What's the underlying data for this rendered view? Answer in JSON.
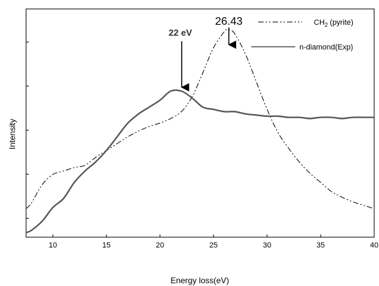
{
  "chart_data": {
    "type": "line",
    "xlabel": "Energy  loss(eV)",
    "ylabel": "Intensity",
    "xlim": [
      7.5,
      40
    ],
    "ylim": [
      0,
      1
    ],
    "x_ticks": [
      10,
      15,
      20,
      25,
      30,
      35,
      40
    ],
    "x_tick_labels": [
      "10",
      "15",
      "20",
      "25",
      "30",
      "35",
      "40"
    ],
    "y_ticks": [
      0.083,
      0.276,
      0.469,
      0.662,
      0.855
    ],
    "grid": false,
    "legend_position": "top-right",
    "series": [
      {
        "name": "CH2 (pyrite)",
        "legend_main": "CH",
        "legend_sub": "2",
        "legend_rest": " (pyrite)",
        "style": "dash-dot-dot",
        "color": "#000000",
        "x": [
          7.5,
          8,
          9,
          10,
          11,
          12,
          13,
          14,
          15,
          16,
          17,
          18,
          19,
          20,
          21,
          22,
          23,
          24,
          25,
          26,
          26.43,
          27,
          28,
          29,
          30,
          31,
          32,
          33,
          34,
          35,
          36,
          37,
          38,
          39,
          40
        ],
        "y": [
          0.125,
          0.15,
          0.23,
          0.275,
          0.29,
          0.305,
          0.315,
          0.35,
          0.38,
          0.41,
          0.44,
          0.465,
          0.485,
          0.5,
          0.52,
          0.55,
          0.615,
          0.72,
          0.83,
          0.9,
          0.91,
          0.89,
          0.8,
          0.68,
          0.56,
          0.46,
          0.39,
          0.33,
          0.28,
          0.24,
          0.2,
          0.175,
          0.155,
          0.14,
          0.125
        ]
      },
      {
        "name": "n-diamond(Exp)",
        "style": "solid",
        "color": "#555555",
        "x": [
          7.5,
          8,
          9,
          10,
          11,
          12,
          13,
          14,
          15,
          16,
          17,
          18,
          19,
          20,
          21,
          22,
          23,
          24,
          25,
          26,
          27,
          28,
          29,
          30,
          31,
          32,
          33,
          34,
          35,
          36,
          37,
          38,
          39,
          40
        ],
        "y": [
          0.02,
          0.03,
          0.07,
          0.13,
          0.17,
          0.24,
          0.29,
          0.33,
          0.38,
          0.44,
          0.5,
          0.54,
          0.57,
          0.6,
          0.64,
          0.64,
          0.61,
          0.57,
          0.56,
          0.55,
          0.55,
          0.54,
          0.535,
          0.53,
          0.53,
          0.525,
          0.525,
          0.52,
          0.525,
          0.525,
          0.52,
          0.525,
          0.525,
          0.525
        ]
      }
    ],
    "annotations": [
      {
        "text": "26.43",
        "x": 26.43,
        "style": "big"
      },
      {
        "text": "22 eV",
        "x": 21.9,
        "style": "small"
      }
    ]
  }
}
